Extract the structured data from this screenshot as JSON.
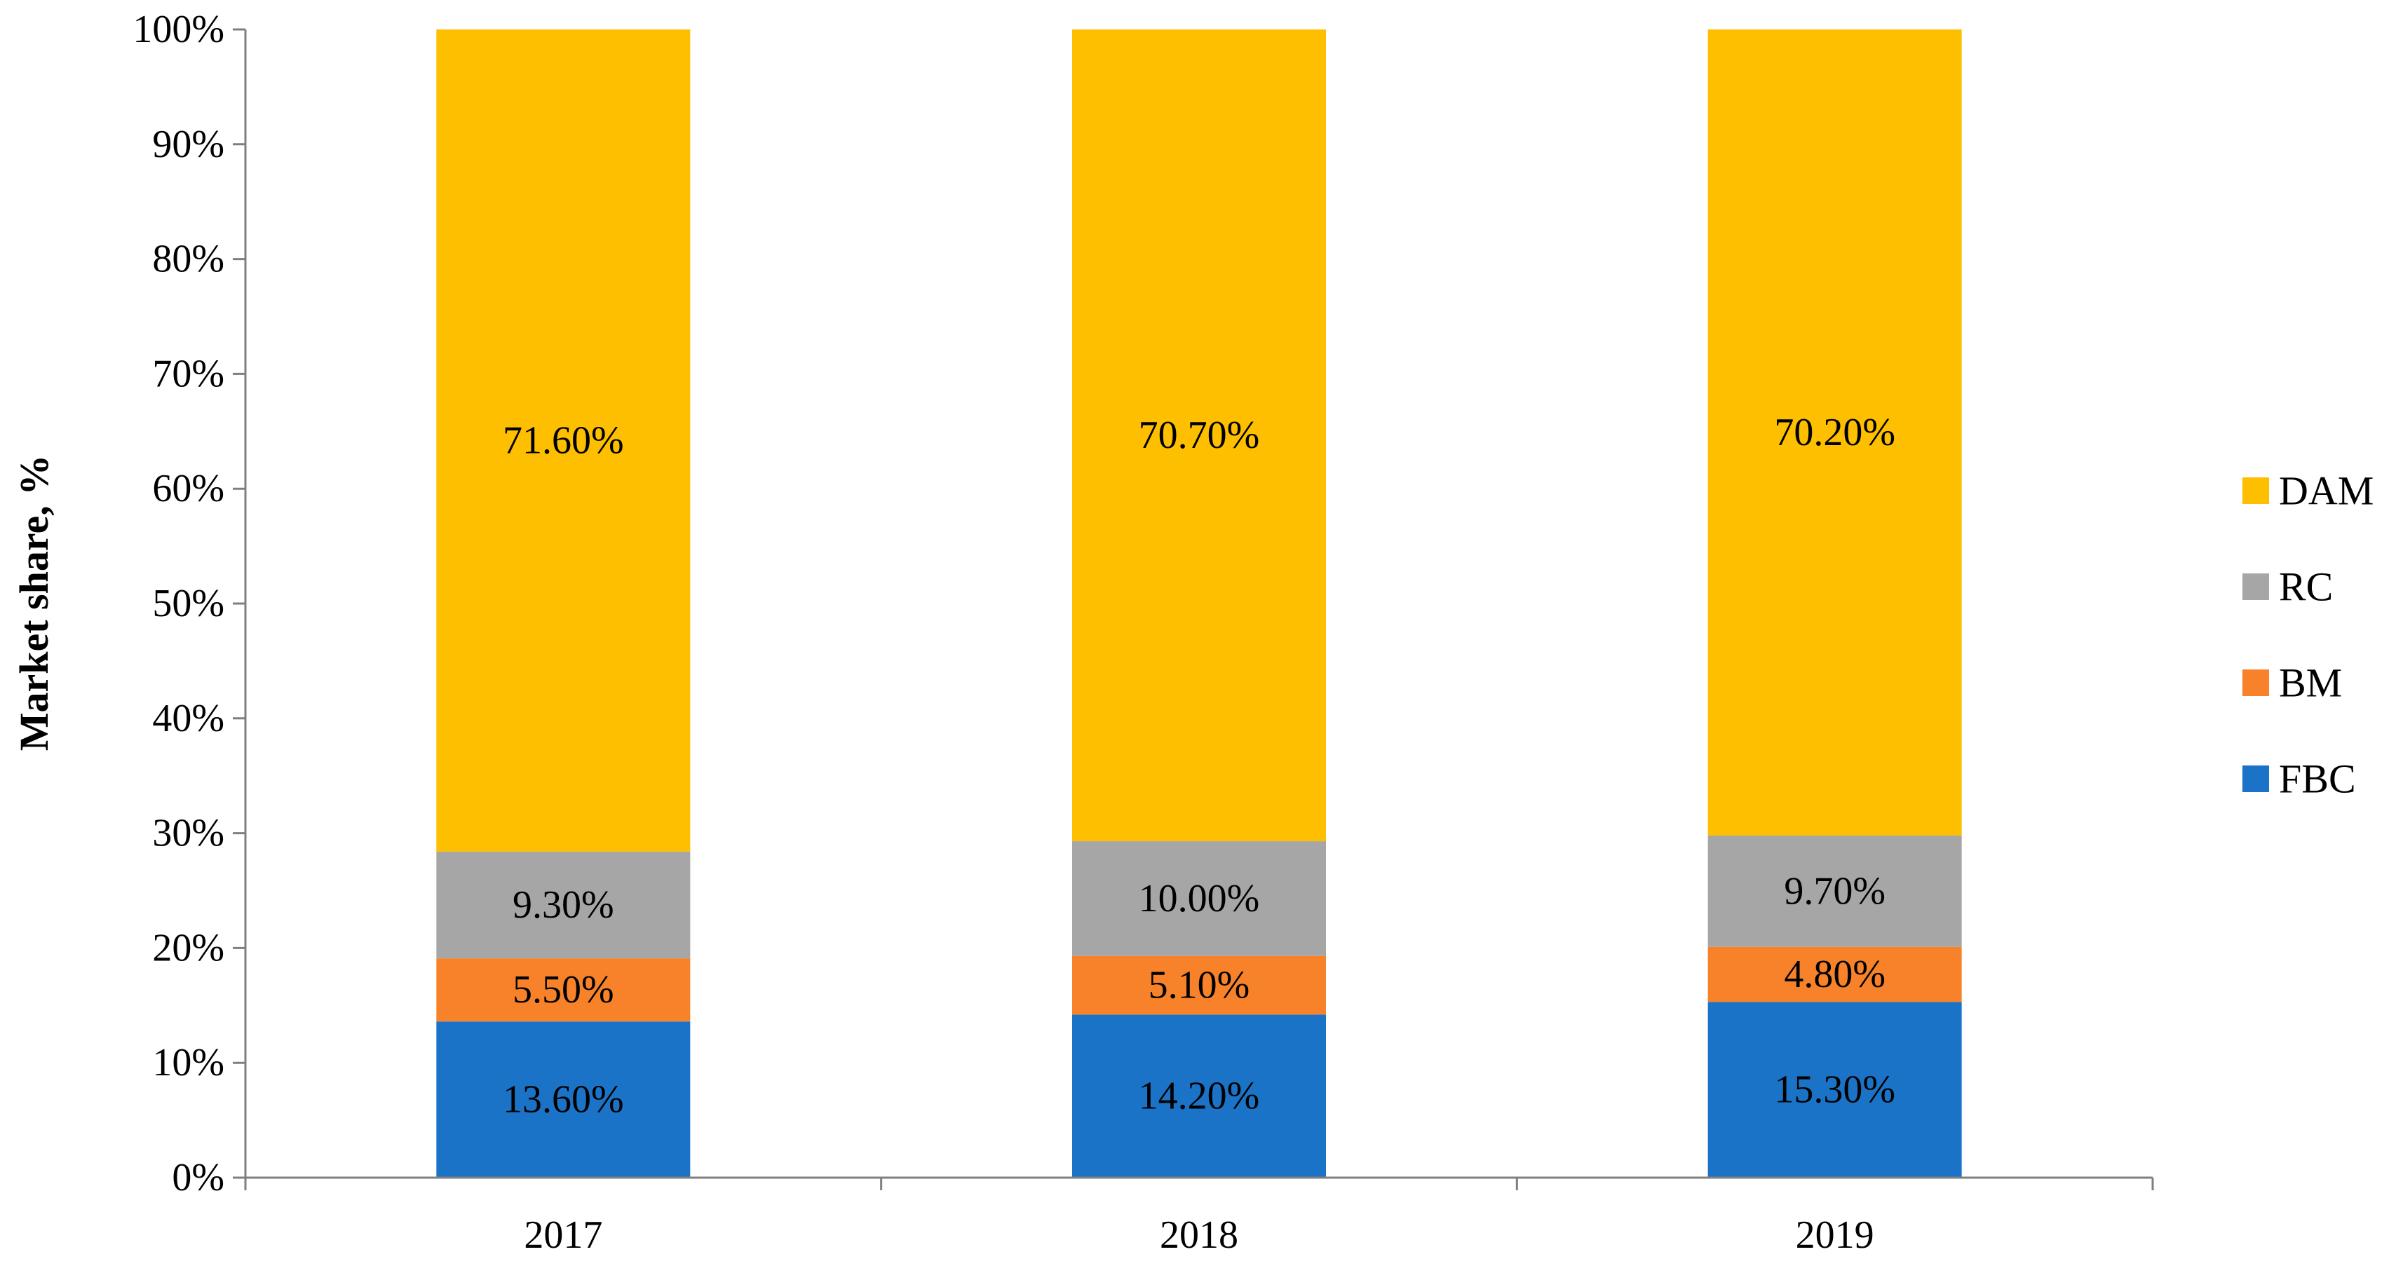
{
  "chart_data": {
    "type": "bar",
    "stacked": true,
    "title": "",
    "xlabel": "",
    "ylabel": "Market share, %",
    "ylim": [
      0,
      100
    ],
    "yticks": [
      "0%",
      "10%",
      "20%",
      "30%",
      "40%",
      "50%",
      "60%",
      "70%",
      "80%",
      "90%",
      "100%"
    ],
    "categories": [
      "2017",
      "2018",
      "2019"
    ],
    "series": [
      {
        "name": "FBC",
        "color": "#1b73c8",
        "values": [
          13.6,
          14.2,
          15.3
        ],
        "labels": [
          "13.60%",
          "14.20%",
          "15.30%"
        ]
      },
      {
        "name": "BM",
        "color": "#f8822a",
        "values": [
          5.5,
          5.1,
          4.8
        ],
        "labels": [
          "5.50%",
          "5.10%",
          "4.80%"
        ]
      },
      {
        "name": "RC",
        "color": "#a6a6a6",
        "values": [
          9.3,
          10.0,
          9.7
        ],
        "labels": [
          "9.30%",
          "10.00%",
          "9.70%"
        ]
      },
      {
        "name": "DAM",
        "color": "#fdbf00",
        "values": [
          71.6,
          70.7,
          70.2
        ],
        "labels": [
          "71.60%",
          "70.70%",
          "70.20%"
        ]
      }
    ],
    "legend": {
      "position": "right",
      "order": [
        "DAM",
        "RC",
        "BM",
        "FBC"
      ]
    },
    "grid": false
  }
}
